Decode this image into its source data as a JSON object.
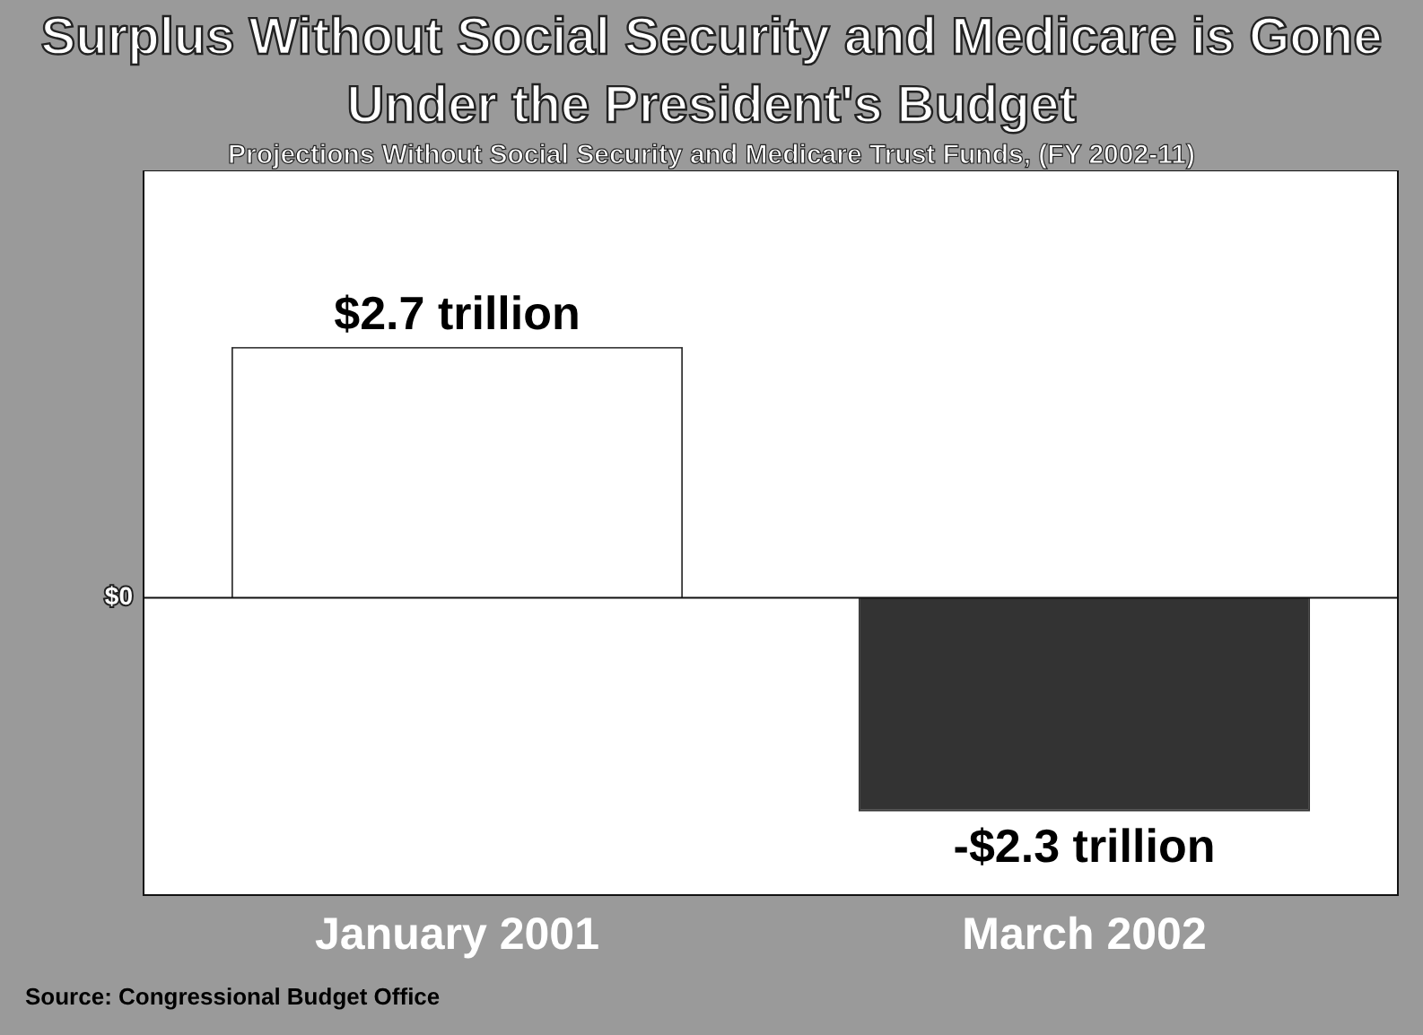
{
  "chart_data": {
    "type": "bar",
    "title": "Surplus Without Social Security and Medicare is Gone Under the President's Budget",
    "subtitle": "Projections Without Social Security and Medicare Trust Funds, (FY 2002-11)",
    "categories": [
      "January 2001",
      "March 2002"
    ],
    "values": [
      2.7,
      -2.3
    ],
    "ylim": [
      -3.2,
      4.6
    ],
    "colors": [
      "#ffffff",
      "#333333"
    ],
    "value_labels": [
      "$2.7 trillion",
      "-$2.3 trillion"
    ],
    "grid": false,
    "legend": false,
    "annotations": [
      "$0",
      "Source: Congressional Budget Office"
    ]
  }
}
